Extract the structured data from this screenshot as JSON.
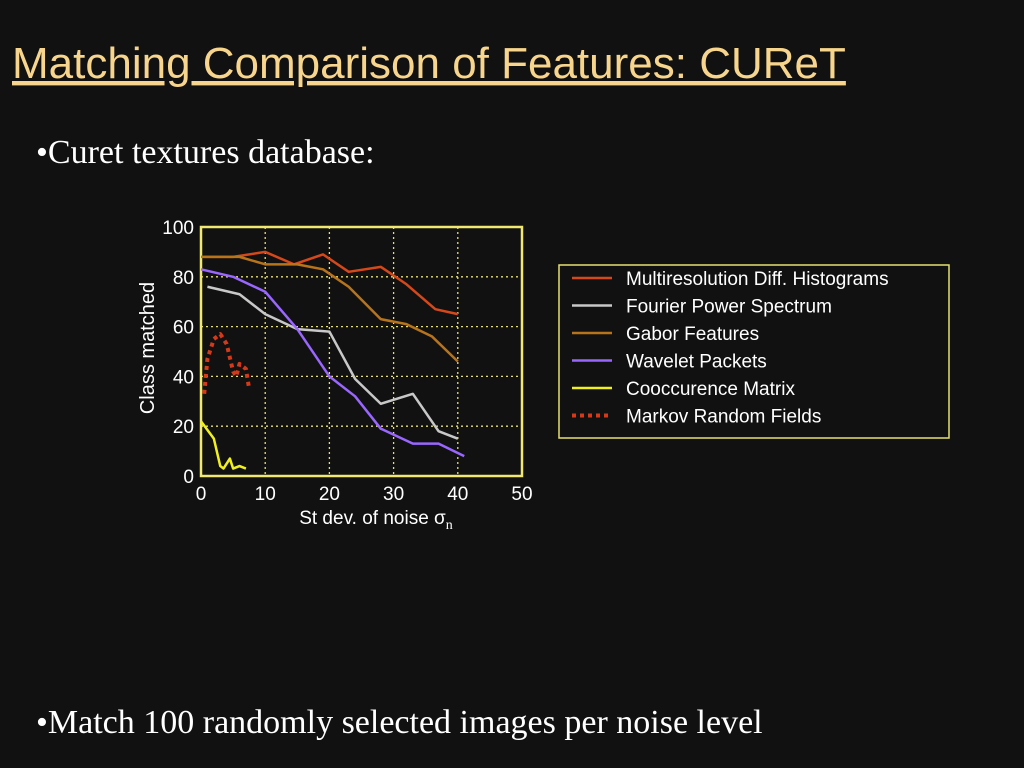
{
  "header": {
    "title": "Matching Comparison of Features: CUReT"
  },
  "bullets": [
    "•Curet textures database:",
    "•Match 100 randomly selected  images per noise level"
  ],
  "chart_data": {
    "type": "line",
    "y_label": "Class matched",
    "x_label": "St dev. of noise σ",
    "x_label_subscript": "n",
    "xlim": [
      0,
      50
    ],
    "xticks": [
      0,
      10,
      20,
      30,
      40,
      50
    ],
    "ylim": [
      0,
      100
    ],
    "yticks": [
      0,
      20,
      40,
      60,
      80,
      100
    ],
    "grid": true,
    "series": [
      {
        "name": "Multiresolution Diff. Histograms",
        "color": "#d4481a",
        "dashed": false,
        "x": [
          0.5,
          5,
          10,
          14.5,
          19,
          23,
          28,
          32,
          36.5,
          40
        ],
        "values": [
          88,
          88,
          90,
          85,
          89,
          82,
          84,
          77,
          67,
          65
        ]
      },
      {
        "name": "Fourier Power Spectrum",
        "color": "#c8c8c8",
        "dashed": false,
        "x": [
          1,
          6,
          10,
          15,
          20,
          24,
          28,
          33,
          37,
          40
        ],
        "values": [
          76,
          73,
          65,
          59,
          58,
          39,
          29,
          33,
          18,
          15
        ]
      },
      {
        "name": "Gabor Features",
        "color": "#b8741a",
        "dashed": false,
        "x": [
          0,
          6,
          10,
          15,
          19,
          23,
          28,
          32,
          36,
          40
        ],
        "values": [
          88,
          88,
          85,
          85,
          83,
          76,
          63,
          61,
          56,
          46
        ]
      },
      {
        "name": "Wavelet Packets",
        "color": "#9966ff",
        "dashed": false,
        "x": [
          0,
          5,
          10,
          15,
          20,
          24,
          28,
          33,
          37,
          41
        ],
        "values": [
          83,
          80,
          74,
          59,
          40,
          32,
          19,
          13,
          13,
          8
        ]
      },
      {
        "name": "Cooccurence Matrix",
        "color": "#f0f020",
        "dashed": false,
        "x": [
          0,
          2,
          3,
          3.5,
          4.5,
          5,
          6,
          7
        ],
        "values": [
          22,
          15,
          4,
          3,
          7,
          3,
          4,
          3
        ]
      },
      {
        "name": "Markov Random Fields",
        "color": "#d43a1a",
        "dashed": true,
        "x": [
          0.5,
          1,
          2,
          3,
          4,
          5,
          5.5,
          6,
          7,
          7.5
        ],
        "values": [
          33,
          47,
          55,
          57,
          53,
          42,
          40,
          45,
          43,
          35
        ]
      }
    ]
  }
}
